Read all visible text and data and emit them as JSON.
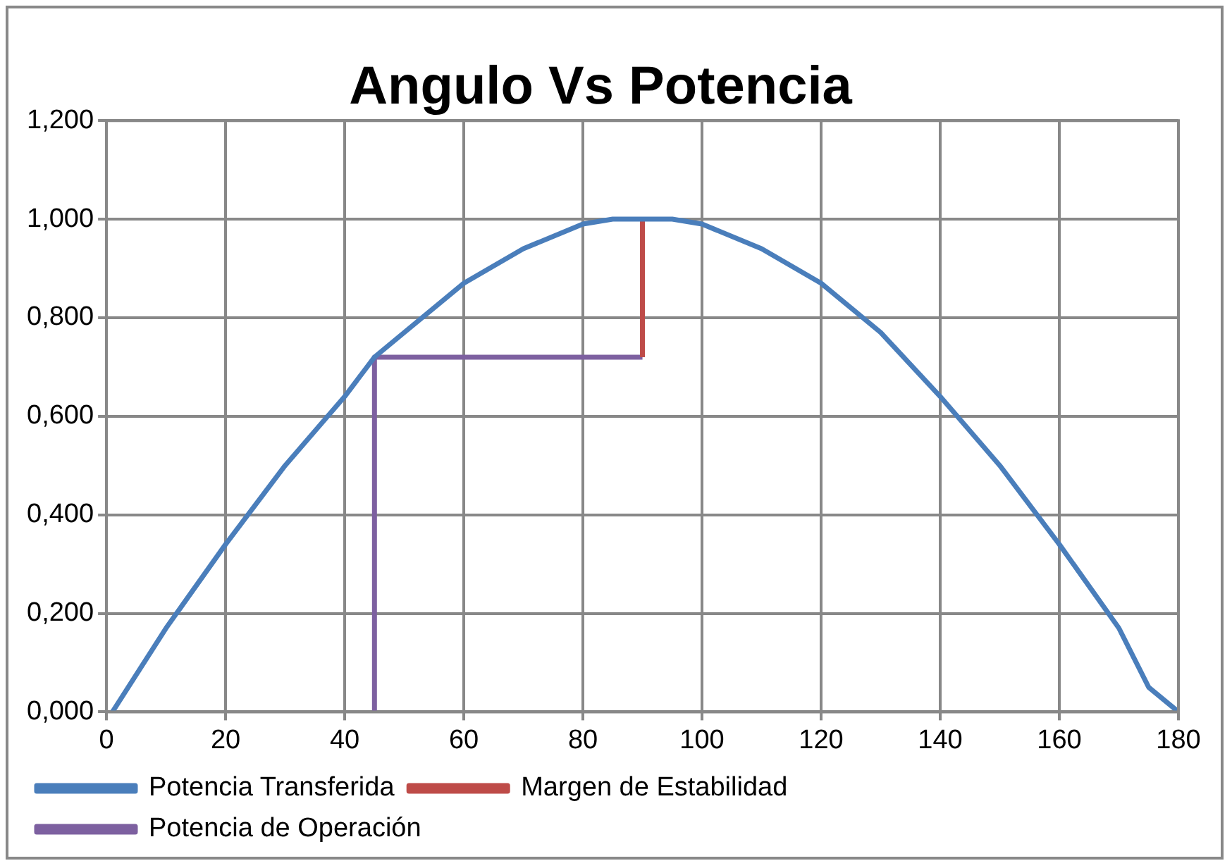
{
  "chart_data": {
    "type": "line",
    "title": "Angulo Vs Potencia",
    "xlim": [
      0,
      180
    ],
    "xticks": [
      0,
      20,
      40,
      60,
      80,
      100,
      120,
      140,
      160,
      180
    ],
    "ylim": [
      0,
      1.2
    ],
    "yticks": [
      {
        "value": 0,
        "label": "0,000"
      },
      {
        "value": 0.2,
        "label": "0,200"
      },
      {
        "value": 0.4,
        "label": "0,400"
      },
      {
        "value": 0.6,
        "label": "0,600"
      },
      {
        "value": 0.8,
        "label": "0,800"
      },
      {
        "value": 1,
        "label": "1,000"
      },
      {
        "value": 1.2,
        "label": "1,200"
      }
    ],
    "grid": true,
    "legend": "bottom",
    "marker": "none",
    "line_style": "solid",
    "series": [
      {
        "name": "Potencia Transferida",
        "color": "#4a7ebb",
        "x": [
          1,
          10,
          20,
          30,
          40,
          45,
          50,
          60,
          70,
          80,
          85,
          90,
          95,
          100,
          110,
          120,
          130,
          140,
          150,
          160,
          170,
          175,
          180
        ],
        "values": [
          0,
          0.17,
          0.34,
          0.5,
          0.64,
          0.72,
          0.77,
          0.87,
          0.94,
          0.99,
          1.0,
          1.0,
          1.0,
          0.99,
          0.94,
          0.87,
          0.77,
          0.64,
          0.5,
          0.34,
          0.17,
          0.05,
          0
        ]
      },
      {
        "name": "Margen de Estabilidad",
        "color": "#be4b48",
        "x": [
          90,
          90
        ],
        "values": [
          0.72,
          1.0
        ]
      },
      {
        "name": "Potencia de Operación",
        "color": "#7d60a0",
        "x": [
          45,
          45,
          90
        ],
        "values": [
          0,
          0.72,
          0.72
        ]
      }
    ]
  }
}
